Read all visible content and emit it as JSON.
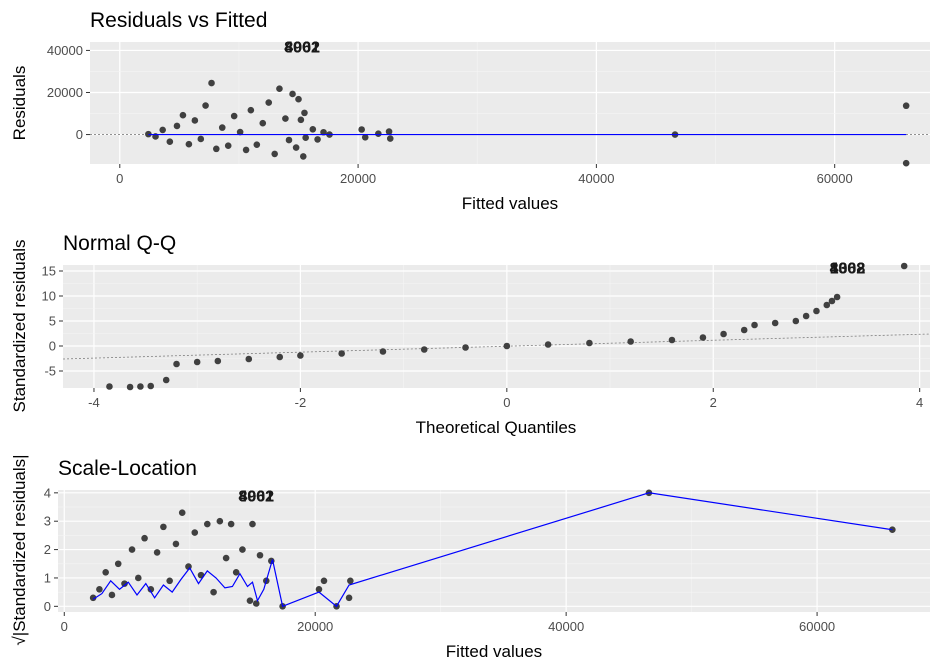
{
  "chart_data": [
    {
      "type": "scatter",
      "title": "Residuals vs Fitted",
      "xlabel": "Fitted values",
      "ylabel": "Residuals",
      "xlim": [
        -2500,
        68000
      ],
      "ylim": [
        -14000,
        44000
      ],
      "xticks": [
        0,
        20000,
        40000,
        60000
      ],
      "xtick_labels": [
        "0",
        "20000",
        "40000",
        "60000"
      ],
      "yticks": [
        0,
        20000,
        40000
      ],
      "ytick_labels": [
        "0",
        "20000",
        "40000"
      ],
      "reference_line": {
        "y": 0,
        "style": "dotted"
      },
      "smooth_color": "#0000ff",
      "point_color": "#404040",
      "outlier_labels": [
        {
          "text": "4062",
          "x": 15300,
          "y": 39000
        },
        {
          "text": "3901",
          "x": 15300,
          "y": 39000
        },
        {
          "text": "8002",
          "x": 15300,
          "y": 39000
        }
      ],
      "points": [
        [
          2400,
          200
        ],
        [
          3000,
          -900
        ],
        [
          3600,
          2200
        ],
        [
          4200,
          -3400
        ],
        [
          4800,
          4100
        ],
        [
          5300,
          9200
        ],
        [
          5800,
          -4600
        ],
        [
          6300,
          6700
        ],
        [
          6800,
          -2100
        ],
        [
          7200,
          13800
        ],
        [
          7700,
          24500
        ],
        [
          8100,
          -6800
        ],
        [
          8600,
          3300
        ],
        [
          9100,
          -5300
        ],
        [
          9600,
          8800
        ],
        [
          10100,
          1200
        ],
        [
          10600,
          -7300
        ],
        [
          11000,
          11600
        ],
        [
          11500,
          -4800
        ],
        [
          12000,
          5400
        ],
        [
          12500,
          15200
        ],
        [
          13000,
          -9200
        ],
        [
          13400,
          21800
        ],
        [
          13900,
          7600
        ],
        [
          14200,
          -2600
        ],
        [
          14500,
          19300
        ],
        [
          14800,
          -6200
        ],
        [
          15000,
          16800
        ],
        [
          15200,
          7000
        ],
        [
          15400,
          -10400
        ],
        [
          15500,
          10300
        ],
        [
          15600,
          -1500
        ],
        [
          16200,
          2500
        ],
        [
          16600,
          -2300
        ],
        [
          17100,
          1100
        ],
        [
          17600,
          0
        ],
        [
          20300,
          2400
        ],
        [
          20600,
          -1300
        ],
        [
          21700,
          400
        ],
        [
          22600,
          1400
        ],
        [
          22700,
          -1900
        ],
        [
          46600,
          0
        ],
        [
          66000,
          13700
        ],
        [
          66000,
          -13600
        ]
      ]
    },
    {
      "type": "scatter",
      "title": "Normal Q-Q",
      "xlabel": "Theoretical Quantiles",
      "ylabel": "Standardized residuals",
      "xlim": [
        -4.3,
        4.1
      ],
      "ylim": [
        -8.4,
        16.2
      ],
      "xticks": [
        -4,
        -2,
        0,
        2,
        4
      ],
      "xtick_labels": [
        "-4",
        "-2",
        "0",
        "2",
        "4"
      ],
      "yticks": [
        -5,
        0,
        5,
        10,
        15
      ],
      "ytick_labels": [
        "-5",
        "0",
        "5",
        "10",
        "15"
      ],
      "reference_line": {
        "x1": -4.3,
        "y1": -2.6,
        "x2": 4.1,
        "y2": 2.4,
        "style": "dotted"
      },
      "point_color": "#404040",
      "outlier_labels": [
        {
          "text": "1308",
          "x": 3.3,
          "y": 14.5
        },
        {
          "text": "8002",
          "x": 3.3,
          "y": 14.5
        },
        {
          "text": "4062",
          "x": 3.3,
          "y": 14.5
        }
      ],
      "points": [
        [
          -3.85,
          -8.1
        ],
        [
          -3.65,
          -8.2
        ],
        [
          -3.55,
          -8.1
        ],
        [
          -3.45,
          -8.0
        ],
        [
          -3.3,
          -6.8
        ],
        [
          -3.2,
          -3.6
        ],
        [
          -3.0,
          -3.2
        ],
        [
          -2.8,
          -3.0
        ],
        [
          -2.5,
          -2.6
        ],
        [
          -2.2,
          -2.2
        ],
        [
          -2.0,
          -1.9
        ],
        [
          -1.6,
          -1.5
        ],
        [
          -1.2,
          -1.1
        ],
        [
          -0.8,
          -0.7
        ],
        [
          -0.4,
          -0.3
        ],
        [
          0.0,
          0.0
        ],
        [
          0.4,
          0.3
        ],
        [
          0.8,
          0.6
        ],
        [
          1.2,
          0.9
        ],
        [
          1.6,
          1.2
        ],
        [
          1.9,
          1.7
        ],
        [
          2.1,
          2.4
        ],
        [
          2.3,
          3.2
        ],
        [
          2.4,
          4.2
        ],
        [
          2.6,
          4.6
        ],
        [
          2.8,
          5.0
        ],
        [
          2.9,
          6.0
        ],
        [
          3.0,
          7.0
        ],
        [
          3.1,
          8.2
        ],
        [
          3.15,
          9.0
        ],
        [
          3.2,
          9.8
        ],
        [
          3.85,
          16.0
        ]
      ]
    },
    {
      "type": "scatter",
      "title": "Scale-Location",
      "xlabel": "Fitted values",
      "ylabel": "√|Standardized residuals|",
      "xlim": [
        -500,
        69000
      ],
      "ylim": [
        -0.2,
        4.1
      ],
      "xticks": [
        0,
        20000,
        40000,
        60000
      ],
      "xtick_labels": [
        "0",
        "20000",
        "40000",
        "60000"
      ],
      "yticks": [
        0,
        1,
        2,
        3,
        4
      ],
      "ytick_labels": [
        "0",
        "1",
        "2",
        "3",
        "4"
      ],
      "smooth_color": "#0000ff",
      "point_color": "#404040",
      "outlier_labels": [
        {
          "text": "4062",
          "x": 15300,
          "y": 3.7
        },
        {
          "text": "3901",
          "x": 15300,
          "y": 3.7
        },
        {
          "text": "8002",
          "x": 15300,
          "y": 3.7
        }
      ],
      "points": [
        [
          2300,
          0.3
        ],
        [
          2800,
          0.6
        ],
        [
          3300,
          1.2
        ],
        [
          3800,
          0.4
        ],
        [
          4300,
          1.5
        ],
        [
          4800,
          0.8
        ],
        [
          5400,
          2.0
        ],
        [
          5900,
          1.0
        ],
        [
          6400,
          2.4
        ],
        [
          6900,
          0.6
        ],
        [
          7400,
          1.9
        ],
        [
          7900,
          2.8
        ],
        [
          8400,
          0.9
        ],
        [
          8900,
          2.2
        ],
        [
          9400,
          3.3
        ],
        [
          9900,
          1.4
        ],
        [
          10400,
          2.6
        ],
        [
          10900,
          1.1
        ],
        [
          11400,
          2.9
        ],
        [
          11900,
          0.5
        ],
        [
          12400,
          3.0
        ],
        [
          12900,
          1.7
        ],
        [
          13300,
          2.9
        ],
        [
          13700,
          1.2
        ],
        [
          14200,
          2.0
        ],
        [
          14800,
          0.2
        ],
        [
          15000,
          2.9
        ],
        [
          15300,
          0.1
        ],
        [
          15600,
          1.8
        ],
        [
          16100,
          0.9
        ],
        [
          16500,
          1.6
        ],
        [
          17400,
          0.0
        ],
        [
          20300,
          0.6
        ],
        [
          20700,
          0.9
        ],
        [
          21700,
          0.0
        ],
        [
          22700,
          0.3
        ],
        [
          22800,
          0.9
        ],
        [
          46600,
          4.0
        ],
        [
          66000,
          2.7
        ]
      ],
      "smooth": [
        [
          2300,
          0.25
        ],
        [
          3000,
          0.45
        ],
        [
          3700,
          0.9
        ],
        [
          4400,
          0.6
        ],
        [
          5100,
          0.85
        ],
        [
          5800,
          0.4
        ],
        [
          6500,
          0.8
        ],
        [
          7200,
          0.3
        ],
        [
          7900,
          0.75
        ],
        [
          8600,
          0.5
        ],
        [
          9300,
          0.95
        ],
        [
          10000,
          1.35
        ],
        [
          10700,
          0.8
        ],
        [
          11400,
          1.25
        ],
        [
          12100,
          1.0
        ],
        [
          12800,
          0.65
        ],
        [
          13400,
          0.7
        ],
        [
          14000,
          1.15
        ],
        [
          14600,
          0.7
        ],
        [
          15000,
          0.85
        ],
        [
          15400,
          0.2
        ],
        [
          15900,
          0.6
        ],
        [
          16600,
          1.65
        ],
        [
          17400,
          0.0
        ],
        [
          20300,
          0.5
        ],
        [
          21700,
          0.0
        ],
        [
          22700,
          0.75
        ],
        [
          46600,
          4.0
        ],
        [
          66000,
          2.7
        ]
      ]
    }
  ]
}
